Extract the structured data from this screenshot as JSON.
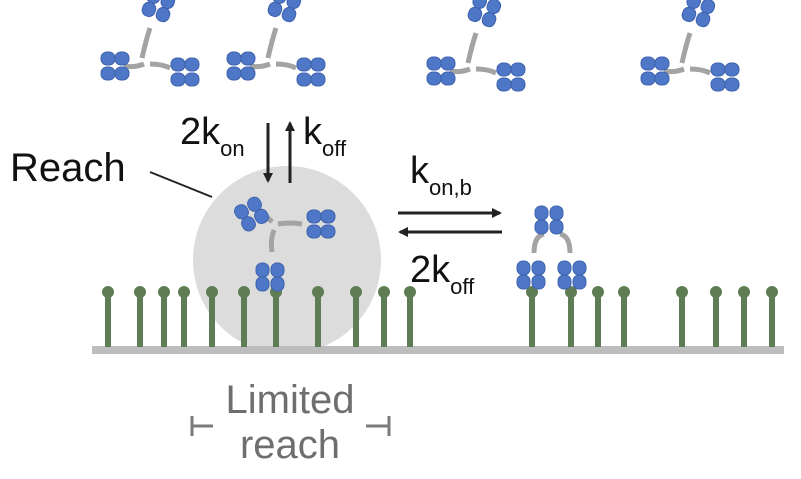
{
  "colors": {
    "antibody_domain": "#4f77c7",
    "antibody_domain_stroke": "#3d62ad",
    "hinge": "#a3a3a3",
    "antigen": "#5e7d55",
    "membrane": "#bdbdbd",
    "reach_circle": "#dcdcdc",
    "arrow": "#222222",
    "bracket": "#7a7a7a",
    "limited_text": "#6e6e6e",
    "text": "#111111"
  },
  "labels": {
    "reach": "Reach",
    "two": "2",
    "k": "k",
    "on": "on",
    "off": "off",
    "on_b": "on,b",
    "limited": "Limited",
    "reach_lower": "reach"
  },
  "icons": {
    "free_antibody": "y-shaped-antibody-icon",
    "bound_antibody": "monovalent-bound-antibody-icon",
    "bivalent_antibody": "bivalent-bound-antibody-icon",
    "antigen": "membrane-antigen-icon"
  }
}
